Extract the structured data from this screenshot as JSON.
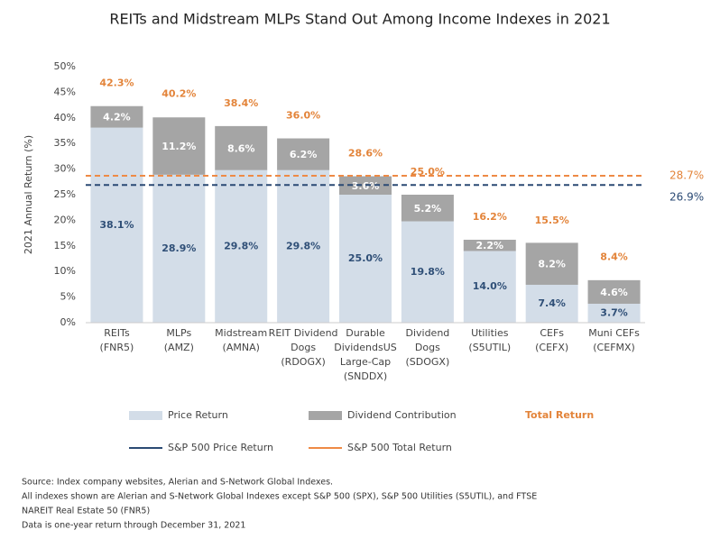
{
  "chart_data": {
    "type": "stacked_bar",
    "title": "REITs and Midstream MLPs Stand Out Among Income Indexes in 2021",
    "y_label": "2021 Annual Return (%)",
    "categories": [
      [
        "REITs",
        "(FNR5)"
      ],
      [
        "MLPs",
        "(AMZ)"
      ],
      [
        "Midstream",
        "(AMNA)"
      ],
      [
        "REIT Dividend",
        "Dogs",
        "(RDOGX)"
      ],
      [
        "Durable",
        "DividendsUS",
        "Large-Cap",
        "(SNDDX)"
      ],
      [
        "Dividend",
        "Dogs",
        "(SDOGX)"
      ],
      [
        "Utilities",
        "(S5UTIL)"
      ],
      [
        "CEFs",
        "(CEFX)"
      ],
      [
        "Muni CEFs",
        "(CEFMX)"
      ]
    ],
    "series": [
      {
        "name": "Price Return",
        "color": "#d3dde8",
        "label_color": "#2f4f77",
        "values": [
          38.1,
          28.9,
          29.8,
          29.8,
          25.0,
          19.8,
          14.0,
          7.4,
          3.7
        ],
        "value_labels": [
          "38.1%",
          "28.9%",
          "29.8%",
          "29.8%",
          "25.0%",
          "19.8%",
          "14.0%",
          "7.4%",
          "3.7%"
        ]
      },
      {
        "name": "Dividend Contribution",
        "color": "#a5a5a5",
        "label_color": "#ffffff",
        "values": [
          4.2,
          11.2,
          8.6,
          6.2,
          3.6,
          5.2,
          2.2,
          8.2,
          4.6
        ],
        "value_labels": [
          "4.2%",
          "11.2%",
          "8.6%",
          "6.2%",
          "3.6%",
          "5.2%",
          "2.2%",
          "8.2%",
          "4.6%"
        ]
      }
    ],
    "totals": {
      "name": "Total Return",
      "color": "#e3843a",
      "values": [
        42.3,
        40.2,
        38.4,
        36.0,
        28.6,
        25.0,
        16.2,
        15.5,
        8.4
      ],
      "value_labels": [
        "42.3%",
        "40.2%",
        "38.4%",
        "36.0%",
        "28.6%",
        "25.0%",
        "16.2%",
        "15.5%",
        "8.4%"
      ]
    },
    "reference_lines": [
      {
        "name": "S&P 500 Price Return",
        "value": 26.9,
        "label": "26.9%",
        "color": "#2b4a74"
      },
      {
        "name": "S&P 500 Total Return",
        "value": 28.7,
        "label": "28.7%",
        "color": "#ee8a45"
      }
    ],
    "ylim": [
      0,
      50
    ],
    "yticks": [
      {
        "value": 0,
        "label": "0%"
      },
      {
        "value": 5,
        "label": "5%"
      },
      {
        "value": 10,
        "label": "10%"
      },
      {
        "value": 15,
        "label": "15%"
      },
      {
        "value": 20,
        "label": "20%"
      },
      {
        "value": 25,
        "label": "25%"
      },
      {
        "value": 30,
        "label": "30%"
      },
      {
        "value": 35,
        "label": "35%"
      },
      {
        "value": 40,
        "label": "40%"
      },
      {
        "value": 45,
        "label": "45%"
      },
      {
        "value": 50,
        "label": "50%"
      }
    ],
    "notes": [
      "Source: Index company websites, Alerian and S-Network Global Indexes.",
      "All indexes shown are Alerian and S-Network Global Indexes except S&P 500 (SPX), S&P 500 Utilities (S5UTIL), and FTSE",
      "NAREIT Real Estate 50 (FNR5)",
      "Data is one-year return through December 31, 2021"
    ]
  }
}
